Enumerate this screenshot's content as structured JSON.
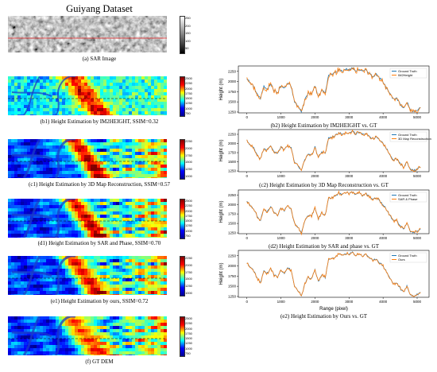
{
  "page_title": "Guiyang Dataset",
  "captions_left": [
    "(a) SAR Image",
    "(b1) Height Estimation by IM2HEIGHT, SSIM=0.32",
    "(c1) Height Estimation by 3D Map Reconstruction, SSIM=0.57",
    "(d1) Height Estimation by SAR and Phase, SSIM=0.70",
    "(e1) Height Estimation by ours, SSIM=0.72",
    "(f) GT DEM"
  ],
  "captions_right": [
    "(b2) Height Estimation by IM2HEIGHT vs. GT",
    "(c2) Height Estimation by 3D Map Reconstruction vs. GT",
    "(d2) Height Estimation by SAR and phase vs. GT",
    "(e2) Height Estimation by Ours vs. GT"
  ],
  "sar_colorbar_ticks": [
    "250",
    "200",
    "150",
    "100",
    "50"
  ],
  "height_colorbar_ticks": [
    "2500",
    "2250",
    "2000",
    "1750",
    "1500",
    "1250",
    "1000",
    "750"
  ],
  "height_colorbar_ticks_short": [
    "2250",
    "2000",
    "1750",
    "1500",
    "1250",
    "1000"
  ],
  "colors": {
    "ground_truth": "#1f77b4",
    "estimate": "#ff7f0e",
    "profile_line": "#e31a1c"
  },
  "chart_data": [
    {
      "type": "line",
      "panel": "b2",
      "ylabel": "Height (m)",
      "xlabel": "",
      "xlim": [
        -250,
        5350
      ],
      "ylim": [
        1230,
        2380
      ],
      "xticks": [
        0,
        1000,
        2000,
        3000,
        4000,
        5000
      ],
      "yticks": [
        1250,
        1500,
        1750,
        2000,
        2250
      ],
      "legend_position": "top-right",
      "series": [
        {
          "name": "Ground Truth",
          "role": "gt"
        },
        {
          "name": "IM2Height",
          "role": "est"
        }
      ]
    },
    {
      "type": "line",
      "panel": "c2",
      "ylabel": "Height (m)",
      "xlabel": "",
      "xlim": [
        -250,
        5350
      ],
      "ylim": [
        1230,
        2380
      ],
      "xticks": [
        0,
        1000,
        2000,
        3000,
        4000,
        5000
      ],
      "yticks": [
        1250,
        1500,
        1750,
        2000,
        2250
      ],
      "legend_position": "top-right",
      "series": [
        {
          "name": "Ground Truth",
          "role": "gt"
        },
        {
          "name": "3D Map Reconstruction",
          "role": "est"
        }
      ]
    },
    {
      "type": "line",
      "panel": "d2",
      "ylabel": "Height (m)",
      "xlabel": "",
      "xlim": [
        -250,
        5350
      ],
      "ylim": [
        1230,
        2380
      ],
      "xticks": [
        0,
        1000,
        2000,
        3000,
        4000,
        5000
      ],
      "yticks": [
        1250,
        1500,
        1750,
        2000,
        2250
      ],
      "legend_position": "top-right",
      "series": [
        {
          "name": "Ground Truth",
          "role": "gt"
        },
        {
          "name": "SAR & Phase",
          "role": "est"
        }
      ]
    },
    {
      "type": "line",
      "panel": "e2",
      "ylabel": "Height (m)",
      "xlabel": "Range (pixel)",
      "xlim": [
        -250,
        5350
      ],
      "ylim": [
        1230,
        2380
      ],
      "xticks": [
        0,
        1000,
        2000,
        3000,
        4000,
        5000
      ],
      "yticks": [
        1250,
        1500,
        1750,
        2000,
        2250
      ],
      "legend_position": "top-right",
      "series": [
        {
          "name": "Ground Truth",
          "role": "gt"
        },
        {
          "name": "Ours",
          "role": "est"
        }
      ]
    }
  ],
  "ground_truth_profile": {
    "x": [
      0,
      100,
      200,
      300,
      400,
      500,
      600,
      700,
      800,
      900,
      1000,
      1100,
      1200,
      1300,
      1400,
      1500,
      1600,
      1700,
      1800,
      1900,
      2000,
      2100,
      2200,
      2300,
      2400,
      2500,
      2600,
      2700,
      2800,
      2900,
      3000,
      3100,
      3200,
      3300,
      3400,
      3500,
      3600,
      3700,
      3800,
      3900,
      4000,
      4100,
      4200,
      4300,
      4400,
      4500,
      4600,
      4700,
      4800,
      4900,
      5000,
      5100
    ],
    "y": [
      2080,
      1960,
      1880,
      1700,
      1580,
      1880,
      1820,
      1940,
      1780,
      1720,
      1900,
      1830,
      1960,
      1880,
      1500,
      1400,
      1250,
      1550,
      1720,
      1680,
      1900,
      1620,
      1780,
      1720,
      2150,
      2180,
      2220,
      2300,
      2250,
      2310,
      2280,
      2330,
      2260,
      2300,
      2240,
      2290,
      2200,
      2120,
      2180,
      2080,
      2000,
      1860,
      1700,
      1560,
      1580,
      1450,
      1350,
      1500,
      1300,
      1260,
      1300,
      1350
    ]
  }
}
